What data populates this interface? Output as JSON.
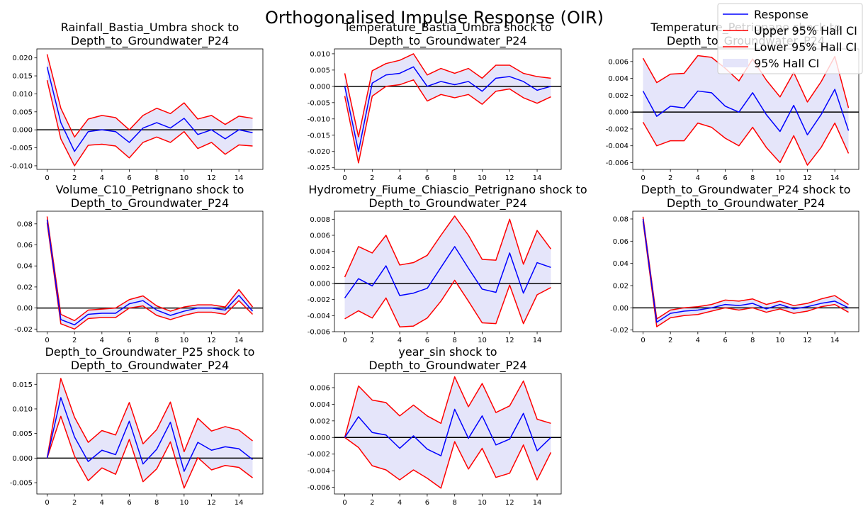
{
  "figure": {
    "title": "Orthogonalised Impulse Response (OIR)",
    "colors": {
      "response": "#0000ff",
      "ci": "#ff0000",
      "band": "#e5e5fa",
      "zero": "#000000"
    }
  },
  "legend": {
    "placement": "top-right",
    "items": [
      {
        "label": "Response",
        "kind": "line",
        "color": "#0000ff"
      },
      {
        "label": "Upper 95% Hall CI",
        "kind": "line",
        "color": "#ff0000"
      },
      {
        "label": "Lower 95% Hall CI",
        "kind": "line",
        "color": "#ff0000"
      },
      {
        "label": "95% Hall CI",
        "kind": "patch",
        "color": "#e5e5fa"
      }
    ]
  },
  "chart_data": [
    {
      "type": "line",
      "title_lines": [
        "Rainfall_Bastia_Umbra shock to",
        "Depth_to_Groundwater_P24"
      ],
      "x": [
        0,
        1,
        2,
        3,
        4,
        5,
        6,
        7,
        8,
        9,
        10,
        11,
        12,
        13,
        14,
        15
      ],
      "ylim": [
        -0.011,
        0.0225
      ],
      "yticks": [
        "0.020",
        "0.015",
        "0.010",
        "0.005",
        "0.000",
        "-0.005",
        "-0.010"
      ],
      "ytick_values": [
        0.02,
        0.015,
        0.01,
        0.005,
        0.0,
        -0.005,
        -0.01
      ],
      "xticks": [
        0,
        2,
        4,
        6,
        8,
        10,
        12,
        14
      ],
      "series": [
        {
          "name": "Response",
          "values": [
            0.0175,
            0.002,
            -0.006,
            -0.0005,
            0.0,
            -0.0005,
            -0.0035,
            0.0005,
            0.002,
            0.0005,
            0.0032,
            -0.0013,
            0.0,
            -0.0025,
            0.0,
            -0.0008
          ]
        },
        {
          "name": "Upper 95% Hall CI",
          "values": [
            0.021,
            0.006,
            -0.002,
            0.003,
            0.004,
            0.0034,
            0.0,
            0.004,
            0.006,
            0.0045,
            0.0075,
            0.003,
            0.004,
            0.0015,
            0.0038,
            0.0032
          ]
        },
        {
          "name": "Lower 95% Hall CI",
          "values": [
            0.0138,
            -0.0025,
            -0.01,
            -0.0043,
            -0.004,
            -0.0045,
            -0.0078,
            -0.0035,
            -0.002,
            -0.0035,
            -0.0005,
            -0.0052,
            -0.0035,
            -0.0068,
            -0.0042,
            -0.0045
          ]
        }
      ]
    },
    {
      "type": "line",
      "title_lines": [
        "Temperature_Bastia_Umbra shock to",
        "Depth_to_Groundwater_P24"
      ],
      "x": [
        0,
        1,
        2,
        3,
        4,
        5,
        6,
        7,
        8,
        9,
        10,
        11,
        12,
        13,
        14,
        15
      ],
      "ylim": [
        -0.0255,
        0.0115
      ],
      "yticks": [
        "0.010",
        "0.005",
        "0.000",
        "-0.005",
        "-0.010",
        "-0.015",
        "-0.020",
        "-0.025"
      ],
      "ytick_values": [
        0.01,
        0.005,
        0.0,
        -0.005,
        -0.01,
        -0.015,
        -0.02,
        -0.025
      ],
      "xticks": [
        0,
        2,
        4,
        6,
        8,
        10,
        12,
        14
      ],
      "series": [
        {
          "name": "Response",
          "values": [
            0.0,
            -0.02,
            0.001,
            0.0035,
            0.004,
            0.006,
            0.0,
            0.0015,
            0.0005,
            0.0015,
            -0.0015,
            0.0025,
            0.003,
            0.0015,
            -0.0012,
            0.0
          ]
        },
        {
          "name": "Upper 95% Hall CI",
          "values": [
            0.004,
            -0.0155,
            0.0048,
            0.007,
            0.008,
            0.01,
            0.0035,
            0.0055,
            0.004,
            0.0055,
            0.0025,
            0.0065,
            0.0065,
            0.004,
            0.003,
            0.0025
          ]
        },
        {
          "name": "Lower 95% Hall CI",
          "values": [
            -0.003,
            -0.0235,
            -0.003,
            0.0,
            0.0005,
            0.002,
            -0.0045,
            -0.0025,
            -0.0035,
            -0.0025,
            -0.0055,
            -0.0015,
            -0.0008,
            -0.0035,
            -0.0052,
            -0.0032
          ]
        }
      ]
    },
    {
      "type": "line",
      "title_lines": [
        "Temperature_Petrignano shock to",
        "Depth_to_Groundwater_P24"
      ],
      "x": [
        0,
        1,
        2,
        3,
        4,
        5,
        6,
        7,
        8,
        9,
        10,
        11,
        12,
        13,
        14,
        15
      ],
      "ylim": [
        -0.0068,
        0.0075
      ],
      "yticks": [
        "0.006",
        "0.004",
        "0.002",
        "0.000",
        "-0.002",
        "-0.004",
        "-0.006"
      ],
      "ytick_values": [
        0.006,
        0.004,
        0.002,
        0.0,
        -0.002,
        -0.004,
        -0.006
      ],
      "xticks": [
        0,
        2,
        4,
        6,
        8,
        10,
        12,
        14
      ],
      "series": [
        {
          "name": "Response",
          "values": [
            0.0025,
            -0.0005,
            0.0007,
            0.0005,
            0.0025,
            0.0023,
            0.0007,
            0.0,
            0.0023,
            -0.0003,
            -0.0023,
            0.0008,
            -0.0027,
            -0.0003,
            0.0027,
            -0.0022
          ]
        },
        {
          "name": "Upper 95% Hall CI",
          "values": [
            0.0064,
            0.0035,
            0.0045,
            0.0046,
            0.0067,
            0.0065,
            0.0052,
            0.0037,
            0.0063,
            0.0038,
            0.0018,
            0.0047,
            0.0012,
            0.0036,
            0.0066,
            0.0005
          ]
        },
        {
          "name": "Lower 95% Hall CI",
          "values": [
            -0.0012,
            -0.004,
            -0.0034,
            -0.0034,
            -0.0013,
            -0.0018,
            -0.0031,
            -0.004,
            -0.0018,
            -0.0042,
            -0.006,
            -0.0028,
            -0.0063,
            -0.0042,
            -0.0013,
            -0.0049
          ]
        }
      ]
    },
    {
      "type": "line",
      "title_lines": [
        "Volume_C10_Petrignano shock to",
        "Depth_to_Groundwater_P24"
      ],
      "x": [
        0,
        1,
        2,
        3,
        4,
        5,
        6,
        7,
        8,
        9,
        10,
        11,
        12,
        13,
        14,
        15
      ],
      "ylim": [
        -0.0225,
        0.092
      ],
      "yticks": [
        "0.08",
        "0.06",
        "0.04",
        "0.02",
        "0.00",
        "-0.02"
      ],
      "ytick_values": [
        0.08,
        0.06,
        0.04,
        0.02,
        0.0,
        -0.02
      ],
      "xticks": [
        0,
        2,
        4,
        6,
        8,
        10,
        12,
        14
      ],
      "series": [
        {
          "name": "Response",
          "values": [
            0.084,
            -0.011,
            -0.016,
            -0.006,
            -0.005,
            -0.005,
            0.004,
            0.007,
            -0.002,
            -0.007,
            -0.003,
            0.0,
            0.0,
            -0.002,
            0.012,
            -0.003
          ]
        },
        {
          "name": "Upper 95% Hall CI",
          "values": [
            0.087,
            -0.006,
            -0.012,
            -0.002,
            -0.001,
            0.0,
            0.008,
            0.0115,
            0.002,
            -0.003,
            0.001,
            0.003,
            0.003,
            0.001,
            0.0175,
            0.001
          ]
        },
        {
          "name": "Lower 95% Hall CI",
          "values": [
            0.081,
            -0.015,
            -0.02,
            -0.01,
            -0.009,
            -0.009,
            0.0,
            0.002,
            -0.007,
            -0.011,
            -0.007,
            -0.004,
            -0.004,
            -0.006,
            0.007,
            -0.006
          ]
        }
      ]
    },
    {
      "type": "line",
      "title_lines": [
        "Hydrometry_Fiume_Chiascio_Petrignano shock to",
        "Depth_to_Groundwater_P24"
      ],
      "x": [
        0,
        1,
        2,
        3,
        4,
        5,
        6,
        7,
        8,
        9,
        10,
        11,
        12,
        13,
        14,
        15
      ],
      "ylim": [
        -0.006,
        0.009
      ],
      "yticks": [
        "0.008",
        "0.006",
        "0.004",
        "0.002",
        "0.000",
        "-0.002",
        "-0.004",
        "-0.006"
      ],
      "ytick_values": [
        0.008,
        0.006,
        0.004,
        0.002,
        0.0,
        -0.002,
        -0.004,
        -0.006
      ],
      "xticks": [
        0,
        2,
        4,
        6,
        8,
        10,
        12,
        14
      ],
      "series": [
        {
          "name": "Response",
          "values": [
            -0.0018,
            0.0006,
            -0.0003,
            0.0022,
            -0.0015,
            -0.0012,
            -0.0006,
            0.002,
            0.0046,
            0.0019,
            -0.0007,
            -0.0011,
            0.0038,
            -0.0012,
            0.0026,
            0.002
          ]
        },
        {
          "name": "Upper 95% Hall CI",
          "values": [
            0.0008,
            0.0046,
            0.0038,
            0.006,
            0.0023,
            0.0026,
            0.0035,
            0.006,
            0.0084,
            0.006,
            0.003,
            0.0029,
            0.008,
            0.0024,
            0.0066,
            0.0043
          ]
        },
        {
          "name": "Lower 95% Hall CI",
          "values": [
            -0.0044,
            -0.0034,
            -0.0043,
            -0.0018,
            -0.0054,
            -0.0053,
            -0.0043,
            -0.0022,
            0.0004,
            -0.0022,
            -0.0049,
            -0.005,
            -0.0002,
            -0.005,
            -0.0014,
            -0.0005
          ]
        }
      ]
    },
    {
      "type": "line",
      "title_lines": [
        "Depth_to_Groundwater_P24 shock to",
        "Depth_to_Groundwater_P24"
      ],
      "x": [
        0,
        1,
        2,
        3,
        4,
        5,
        6,
        7,
        8,
        9,
        10,
        11,
        12,
        13,
        14,
        15
      ],
      "ylim": [
        -0.0215,
        0.087
      ],
      "yticks": [
        "0.08",
        "0.06",
        "0.04",
        "0.02",
        "0.00",
        "-0.02"
      ],
      "ytick_values": [
        0.08,
        0.06,
        0.04,
        0.02,
        0.0,
        -0.02
      ],
      "xticks": [
        0,
        2,
        4,
        6,
        8,
        10,
        12,
        14
      ],
      "series": [
        {
          "name": "Response",
          "values": [
            0.08,
            -0.013,
            -0.005,
            -0.003,
            -0.002,
            0.0,
            0.003,
            0.002,
            0.004,
            -0.001,
            0.003,
            -0.001,
            0.001,
            0.004,
            0.006,
            0.0
          ]
        },
        {
          "name": "Upper 95% Hall CI",
          "values": [
            0.082,
            -0.01,
            -0.002,
            0.0,
            0.001,
            0.003,
            0.007,
            0.006,
            0.008,
            0.003,
            0.006,
            0.002,
            0.004,
            0.008,
            0.011,
            0.003
          ]
        },
        {
          "name": "Lower 95% Hall CI",
          "values": [
            0.078,
            -0.017,
            -0.009,
            -0.007,
            -0.006,
            -0.003,
            0.0,
            -0.002,
            0.0,
            -0.004,
            -0.001,
            -0.005,
            -0.003,
            0.001,
            0.003,
            -0.004
          ]
        }
      ]
    },
    {
      "type": "line",
      "title_lines": [
        "Depth_to_Groundwater_P25 shock to",
        "Depth_to_Groundwater_P24"
      ],
      "x": [
        0,
        1,
        2,
        3,
        4,
        5,
        6,
        7,
        8,
        9,
        10,
        11,
        12,
        13,
        14,
        15
      ],
      "ylim": [
        -0.0073,
        0.0172
      ],
      "yticks": [
        "0.015",
        "0.010",
        "0.005",
        "0.000",
        "-0.005"
      ],
      "ytick_values": [
        0.015,
        0.01,
        0.005,
        0.0,
        -0.005
      ],
      "xticks": [
        0,
        2,
        4,
        6,
        8,
        10,
        12,
        14
      ],
      "series": [
        {
          "name": "Response",
          "values": [
            0.0,
            0.0123,
            0.0043,
            -0.0007,
            0.0016,
            0.0007,
            0.0075,
            -0.0012,
            0.0018,
            0.0073,
            -0.0027,
            0.0032,
            0.0016,
            0.0023,
            0.0019,
            -0.0003
          ]
        },
        {
          "name": "Upper 95% Hall CI",
          "values": [
            0.0,
            0.0162,
            0.0083,
            0.0032,
            0.0056,
            0.0047,
            0.0113,
            0.0029,
            0.0058,
            0.0114,
            0.0013,
            0.0081,
            0.0055,
            0.0064,
            0.0057,
            0.0035
          ]
        },
        {
          "name": "Lower 95% Hall CI",
          "values": [
            0.0,
            0.0085,
            0.0004,
            -0.0046,
            -0.002,
            -0.0033,
            0.0038,
            -0.0048,
            -0.0022,
            0.0033,
            -0.0061,
            0.0001,
            -0.0024,
            -0.0015,
            -0.0019,
            -0.004
          ]
        }
      ]
    },
    {
      "type": "line",
      "title_lines": [
        "year_sin shock to",
        "Depth_to_Groundwater_P24"
      ],
      "x": [
        0,
        1,
        2,
        3,
        4,
        5,
        6,
        7,
        8,
        9,
        10,
        11,
        12,
        13,
        14,
        15
      ],
      "ylim": [
        -0.0068,
        0.0077
      ],
      "yticks": [
        "0.006",
        "0.004",
        "0.002",
        "0.000",
        "-0.002",
        "-0.004",
        "-0.006"
      ],
      "ytick_values": [
        0.006,
        0.004,
        0.002,
        0.0,
        -0.002,
        -0.004,
        -0.006
      ],
      "xticks": [
        0,
        2,
        4,
        6,
        8,
        10,
        12,
        14
      ],
      "series": [
        {
          "name": "Response",
          "values": [
            0.0,
            0.0025,
            0.0006,
            0.0003,
            -0.0013,
            0.0002,
            -0.0014,
            -0.0022,
            0.0034,
            -0.0001,
            0.0026,
            -0.0009,
            -0.0002,
            0.0029,
            -0.0016,
            0.0
          ]
        },
        {
          "name": "Upper 95% Hall CI",
          "values": [
            0.0,
            0.0062,
            0.0045,
            0.0042,
            0.0026,
            0.0039,
            0.0026,
            0.0017,
            0.0073,
            0.0037,
            0.0065,
            0.003,
            0.0038,
            0.0068,
            0.0022,
            0.0017
          ]
        },
        {
          "name": "Lower 95% Hall CI",
          "values": [
            0.0,
            -0.0012,
            -0.0034,
            -0.0039,
            -0.0051,
            -0.0039,
            -0.0049,
            -0.0061,
            -0.0005,
            -0.0038,
            -0.0013,
            -0.0048,
            -0.0043,
            -0.0009,
            -0.0051,
            -0.0018
          ]
        }
      ]
    }
  ]
}
